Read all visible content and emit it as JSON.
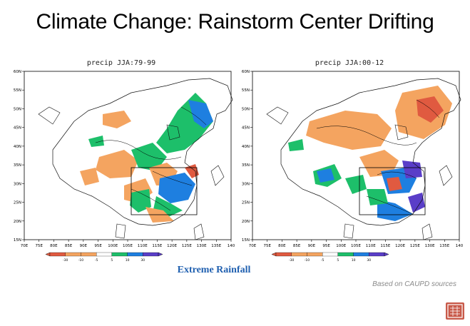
{
  "slide": {
    "title": "Climate Change: Rainstorm Center Drifting",
    "caption": "Extreme Rainfall",
    "source": "Based on CAUPD sources"
  },
  "colors": {
    "strong_dry": "#e05a40",
    "dry": "#f4a460",
    "neutral": "#ffffff",
    "wet": "#1dbf6a",
    "very_wet": "#1e7fe0",
    "extreme_wet": "#5a3ec8",
    "caption": "#2060b0"
  },
  "maps": [
    {
      "id": "left",
      "title": "precip JJA:79-99",
      "x_ticks": [
        "70E",
        "75E",
        "80E",
        "85E",
        "90E",
        "95E",
        "100E",
        "105E",
        "110E",
        "115E",
        "120E",
        "125E",
        "130E",
        "135E",
        "140"
      ],
      "y_ticks": [
        "60N",
        "55N",
        "50N",
        "45N",
        "40N",
        "35N",
        "30N",
        "25N",
        "20N",
        "15N"
      ]
    },
    {
      "id": "right",
      "title": "precip JJA:00-12",
      "x_ticks": [
        "70E",
        "75E",
        "80E",
        "85E",
        "90E",
        "95E",
        "100E",
        "105E",
        "110E",
        "115E",
        "120E",
        "125E",
        "130E",
        "135E",
        "140"
      ],
      "y_ticks": [
        "60N",
        "55N",
        "50N",
        "45N",
        "40N",
        "35N",
        "30N",
        "25N",
        "20N",
        "15N"
      ]
    }
  ],
  "legend": {
    "labels": [
      "-30",
      "-10",
      "-5",
      "5",
      "10",
      "30"
    ]
  }
}
